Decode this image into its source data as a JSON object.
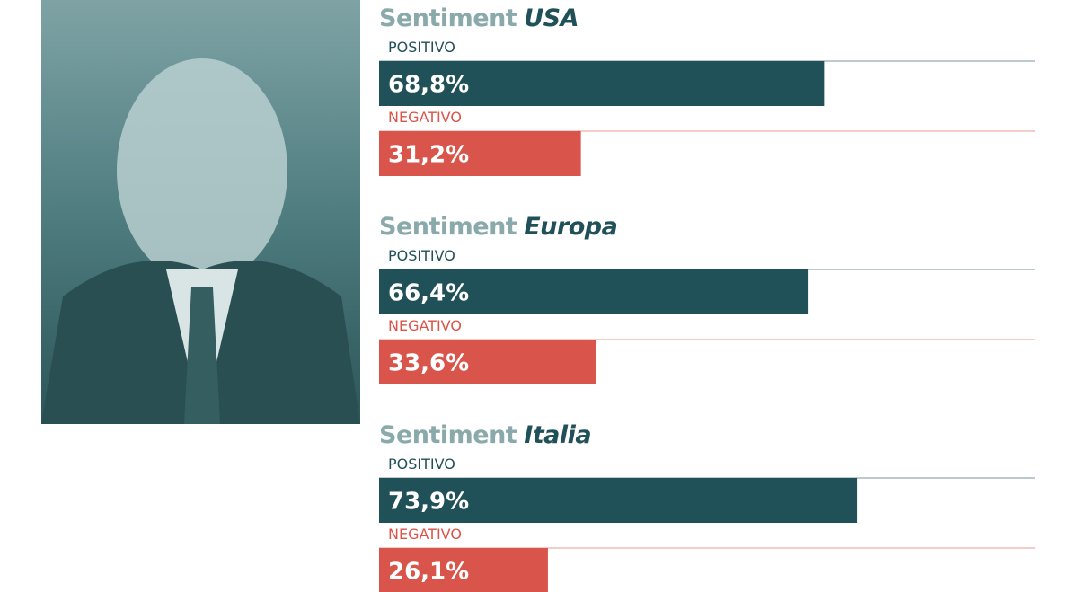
{
  "chart_data": [
    {
      "type": "bar",
      "title_parts": [
        "Sentiment",
        "USA"
      ],
      "categories": [
        "POSITIVO",
        "NEGATIVO"
      ],
      "values": [
        68.8,
        31.2
      ],
      "value_labels": [
        "68,8%",
        "31,2%"
      ],
      "colors": [
        "#215158",
        "#d9544a"
      ],
      "xlim": [
        0,
        100
      ]
    },
    {
      "type": "bar",
      "title_parts": [
        "Sentiment",
        "Europa"
      ],
      "categories": [
        "POSITIVO",
        "NEGATIVO"
      ],
      "values": [
        66.4,
        33.6
      ],
      "value_labels": [
        "66,4%",
        "33,6%"
      ],
      "colors": [
        "#215158",
        "#d9544a"
      ],
      "xlim": [
        0,
        100
      ]
    },
    {
      "type": "bar",
      "title_parts": [
        "Sentiment",
        "Italia"
      ],
      "categories": [
        "POSITIVO",
        "NEGATIVO"
      ],
      "values": [
        73.9,
        26.1
      ],
      "value_labels": [
        "73,9%",
        "26,1%"
      ],
      "colors": [
        "#215158",
        "#d9544a"
      ],
      "xlim": [
        0,
        100
      ]
    }
  ]
}
